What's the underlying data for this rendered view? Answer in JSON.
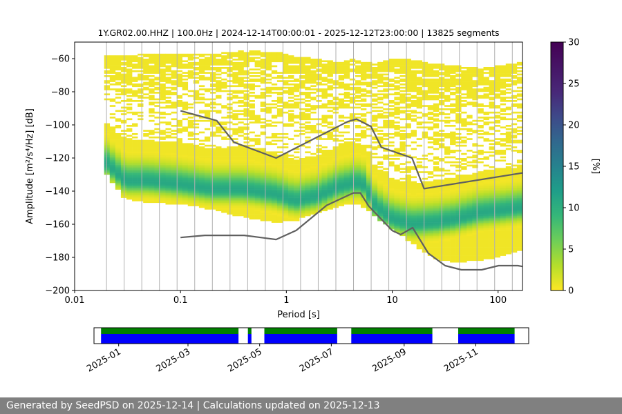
{
  "chart_data": {
    "type": "heatmap",
    "title": "1Y.GR02.00.HHZ | 100.0Hz | 2024-12-14T00:00:01 - 2025-12-12T23:00:00 | 13825 segments",
    "xlabel": "Period [s]",
    "ylabel": "Amplitude [m²/s⁴/Hz] [dB]",
    "x_scale": "log",
    "xlim": [
      0.01,
      170
    ],
    "ylim": [
      -200,
      -50
    ],
    "x_ticks": [
      0.01,
      0.1,
      1,
      10,
      100
    ],
    "x_tick_labels": [
      "0.01",
      "0.1",
      "1",
      "10",
      "100"
    ],
    "y_ticks": [
      -200,
      -180,
      -160,
      -140,
      -120,
      -100,
      -80,
      -60
    ],
    "y_tick_labels": [
      "−200",
      "−180",
      "−160",
      "−140",
      "−120",
      "−100",
      "−80",
      "−60"
    ],
    "vertical_grid": "at every period bin, x >= 0.02 s",
    "colorbar": {
      "label": "[%]",
      "colormap": "viridis_r",
      "range": [
        0,
        30
      ],
      "ticks": [
        0,
        5,
        10,
        15,
        20,
        25,
        30
      ],
      "tick_labels": [
        "0",
        "5",
        "10",
        "15",
        "20",
        "25",
        "30"
      ]
    },
    "mode_curve": {
      "name": "",
      "x": [
        0.019,
        0.03,
        0.05,
        0.1,
        0.2,
        0.4,
        0.8,
        1.2,
        2,
        3,
        4.5,
        5.5,
        7,
        10,
        15,
        25,
        40,
        70,
        100,
        170
      ],
      "y": [
        -122,
        -134,
        -134,
        -136,
        -139,
        -139,
        -142,
        -146,
        -143,
        -138,
        -135,
        -137,
        -150,
        -157,
        -160,
        -159,
        -157,
        -153,
        -152,
        -150
      ]
    },
    "envelope_top": {
      "x": [
        0.019,
        0.03,
        0.05,
        0.1,
        0.2,
        0.4,
        0.8,
        1.2,
        2,
        3,
        4.5,
        5.5,
        7,
        10,
        15,
        25,
        40,
        70,
        100,
        170
      ],
      "y": [
        -58,
        -58,
        -57,
        -57,
        -57,
        -55,
        -56,
        -58,
        -60,
        -62,
        -60,
        -62,
        -63,
        -60,
        -60,
        -63,
        -64,
        -66,
        -64,
        -62
      ]
    },
    "envelope_bottom": {
      "x": [
        0.019,
        0.03,
        0.05,
        0.1,
        0.2,
        0.4,
        0.8,
        1.2,
        2,
        3,
        4.5,
        5.5,
        7,
        10,
        15,
        25,
        40,
        70,
        100,
        170
      ],
      "y": [
        -128,
        -145,
        -147,
        -148,
        -151,
        -156,
        -159,
        -158,
        -153,
        -150,
        -147,
        -150,
        -156,
        -163,
        -171,
        -181,
        -183,
        -182,
        -180,
        -175
      ]
    },
    "nhnm": {
      "name": "",
      "x": [
        0.1,
        0.22,
        0.32,
        0.8,
        3.8,
        4.6,
        6.3,
        7.9,
        15.4,
        20,
        170
      ],
      "y": [
        -91.5,
        -97.4,
        -110.5,
        -120,
        -98,
        -96.5,
        -101,
        -113.5,
        -120,
        -138.5,
        -129
      ]
    },
    "nlnm": {
      "name": "",
      "x": [
        0.1,
        0.17,
        0.4,
        0.8,
        1.24,
        2.4,
        4.3,
        5,
        6,
        10,
        12,
        15.6,
        21.9,
        31.6,
        45,
        70,
        101,
        154,
        170
      ],
      "y": [
        -168,
        -166.7,
        -166.7,
        -169.2,
        -163.7,
        -148.6,
        -141.1,
        -141.1,
        -149,
        -163.8,
        -166.2,
        -162.1,
        -177.5,
        -185,
        -187.5,
        -187.5,
        -185,
        -185,
        -185.5
      ]
    },
    "availability": {
      "date_ticks": [
        "2025-01",
        "2025-03",
        "2025-05",
        "2025-07",
        "2025-09",
        "2025-11"
      ],
      "x_range": [
        "2024-12-14",
        "2025-12-12"
      ],
      "segments": [
        {
          "start": "2024-12-17",
          "end": "2025-04-13"
        },
        {
          "start": "2025-04-21",
          "end": "2025-04-24"
        },
        {
          "start": "2025-05-05",
          "end": "2025-07-06"
        },
        {
          "start": "2025-07-18",
          "end": "2025-09-25"
        },
        {
          "start": "2025-10-17",
          "end": "2025-12-04"
        }
      ],
      "colors": {
        "top": "#008000",
        "bottom": "#0000ff"
      }
    }
  },
  "footer": {
    "text": "Generated by SeedPSD on 2025-12-14 | Calculations updated on 2025-12-13"
  }
}
